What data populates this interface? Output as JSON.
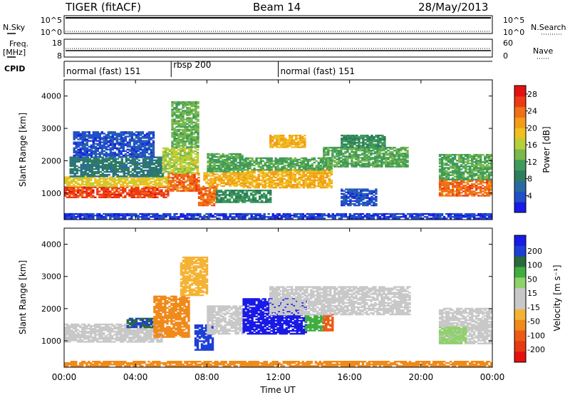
{
  "header": {
    "station": "TIGER (fitACF)",
    "beam": "Beam 14",
    "date": "28/May/2013"
  },
  "sky_panel": {
    "left_label": "N.Sky",
    "left_ticks": [
      "10^5",
      "10^0"
    ],
    "right_label": "N.Search",
    "right_ticks": [
      "10^5",
      "10^0"
    ]
  },
  "freq_panel": {
    "left_label_1": "Freq.",
    "left_label_2": "[MHz]",
    "left_ticks": [
      "18",
      "8"
    ],
    "right_label": "Nave",
    "right_ticks": [
      "60",
      "0"
    ]
  },
  "cpid": {
    "label": "CPID",
    "segments": [
      {
        "start_hr": 0,
        "end_hr": 6,
        "text": "normal (fast) 151"
      },
      {
        "start_hr": 6,
        "end_hr": 12,
        "text": "rbsp 200"
      },
      {
        "start_hr": 12,
        "end_hr": 24,
        "text": "normal (fast) 151"
      }
    ]
  },
  "colors": {
    "power_scale": [
      "#1a1ae6",
      "#2050c8",
      "#2a6aa0",
      "#2e7d5c",
      "#3f9b5a",
      "#78b84c",
      "#b7cf3a",
      "#f0c020",
      "#f39c18",
      "#f07018",
      "#ec3a16",
      "#e61010"
    ],
    "velocity_scale": [
      "#1a1ae6",
      "#1e3fd6",
      "#2a6a3c",
      "#3fae3f",
      "#8fd16b",
      "#c8c8c8",
      "#c8c8c8",
      "#f5b335",
      "#f08a1a",
      "#ec5a14",
      "#e63a10",
      "#e61010"
    ],
    "line": "#000000",
    "ground_scatter": "#c2c2c2"
  },
  "chart_data": [
    {
      "type": "heatmap",
      "name": "power",
      "xlabel": "Time UT",
      "ylabel": "Slant Range [km]",
      "x_tick_labels": [
        "00:00",
        "04:00",
        "08:00",
        "12:00",
        "16:00",
        "20:00",
        "00:00"
      ],
      "y_ticks": [
        1000,
        2000,
        3000,
        4000
      ],
      "xlim_hours": [
        0,
        24
      ],
      "ylim_km": [
        180,
        4500
      ],
      "colorbar": {
        "label": "Power [dB]",
        "ticks": [
          4,
          8,
          12,
          16,
          20,
          24,
          28
        ],
        "range": [
          0,
          30
        ]
      },
      "echo_bands": [
        {
          "t0": 0.0,
          "t1": 5.8,
          "r0": 850,
          "r1": 1200,
          "value": 26
        },
        {
          "t0": 0.0,
          "t1": 5.8,
          "r0": 1200,
          "r1": 1500,
          "value": 18
        },
        {
          "t0": 0.3,
          "t1": 5.5,
          "r0": 1500,
          "r1": 2100,
          "value": 8
        },
        {
          "t0": 0.5,
          "t1": 5.0,
          "r0": 2100,
          "r1": 2900,
          "value": 4
        },
        {
          "t0": 5.8,
          "t1": 7.6,
          "r0": 1050,
          "r1": 1600,
          "value": 24
        },
        {
          "t0": 5.5,
          "t1": 7.5,
          "r0": 1600,
          "r1": 2400,
          "value": 16
        },
        {
          "t0": 6.0,
          "t1": 7.5,
          "r0": 2400,
          "r1": 3800,
          "value": 13
        },
        {
          "t0": 7.5,
          "t1": 8.5,
          "r0": 600,
          "r1": 1200,
          "value": 24
        },
        {
          "t0": 7.8,
          "t1": 10.2,
          "r0": 1200,
          "r1": 1650,
          "value": 20
        },
        {
          "t0": 8.0,
          "t1": 10.0,
          "r0": 1650,
          "r1": 2200,
          "value": 12
        },
        {
          "t0": 8.5,
          "t1": 11.5,
          "r0": 700,
          "r1": 1100,
          "value": 10
        },
        {
          "t0": 10.0,
          "t1": 15.0,
          "r0": 1150,
          "r1": 1700,
          "value": 20
        },
        {
          "t0": 10.0,
          "t1": 15.0,
          "r0": 1700,
          "r1": 2100,
          "value": 12
        },
        {
          "t0": 11.5,
          "t1": 13.5,
          "r0": 2400,
          "r1": 2800,
          "value": 20
        },
        {
          "t0": 14.5,
          "t1": 19.3,
          "r0": 1800,
          "r1": 2400,
          "value": 12
        },
        {
          "t0": 15.5,
          "t1": 18.0,
          "r0": 2400,
          "r1": 2800,
          "value": 10
        },
        {
          "t0": 15.5,
          "t1": 17.5,
          "r0": 600,
          "r1": 1100,
          "value": 4
        },
        {
          "t0": 21.0,
          "t1": 24.0,
          "r0": 900,
          "r1": 1400,
          "value": 24
        },
        {
          "t0": 21.0,
          "t1": 24.0,
          "r0": 1400,
          "r1": 2200,
          "value": 12
        },
        {
          "t0": 0.0,
          "t1": 24.0,
          "r0": 200,
          "r1": 380,
          "value": 3
        }
      ]
    },
    {
      "type": "heatmap",
      "name": "velocity",
      "xlabel": "Time UT",
      "ylabel": "Slant Range [km]",
      "x_tick_labels": [
        "00:00",
        "04:00",
        "08:00",
        "12:00",
        "16:00",
        "20:00",
        "00:00"
      ],
      "y_ticks": [
        1000,
        2000,
        3000,
        4000
      ],
      "xlim_hours": [
        0,
        24
      ],
      "ylim_km": [
        180,
        4500
      ],
      "colorbar": {
        "label": "Velocity [m s⁻¹]",
        "tick_labels": [
          "200",
          "100",
          "50",
          "15",
          "-15",
          "-50",
          "-100",
          "-200"
        ]
      },
      "echo_bands": [
        {
          "t0": 0.0,
          "t1": 5.5,
          "r0": 950,
          "r1": 1500,
          "value": 0
        },
        {
          "t0": 3.5,
          "t1": 5.0,
          "r0": 1400,
          "r1": 1700,
          "value": 150
        },
        {
          "t0": 5.0,
          "t1": 7.0,
          "r0": 1100,
          "r1": 2400,
          "value": -60
        },
        {
          "t0": 6.5,
          "t1": 8.0,
          "r0": 2400,
          "r1": 3600,
          "value": -40
        },
        {
          "t0": 7.3,
          "t1": 8.3,
          "r0": 700,
          "r1": 1500,
          "value": 180
        },
        {
          "t0": 8.0,
          "t1": 10.0,
          "r0": 1200,
          "r1": 2100,
          "value": 0
        },
        {
          "t0": 10.0,
          "t1": 13.5,
          "r0": 1200,
          "r1": 2300,
          "value": 220
        },
        {
          "t0": 13.5,
          "t1": 14.5,
          "r0": 1300,
          "r1": 1800,
          "value": 60
        },
        {
          "t0": 14.5,
          "t1": 15.0,
          "r0": 1300,
          "r1": 1800,
          "value": -120
        },
        {
          "t0": 11.5,
          "t1": 19.3,
          "r0": 1800,
          "r1": 2700,
          "value": 0
        },
        {
          "t0": 21.0,
          "t1": 24.0,
          "r0": 900,
          "r1": 2000,
          "value": 0
        },
        {
          "t0": 21.0,
          "t1": 22.5,
          "r0": 900,
          "r1": 1400,
          "value": 40
        },
        {
          "t0": 0.0,
          "t1": 24.0,
          "r0": 200,
          "r1": 380,
          "value": -60
        }
      ]
    }
  ]
}
